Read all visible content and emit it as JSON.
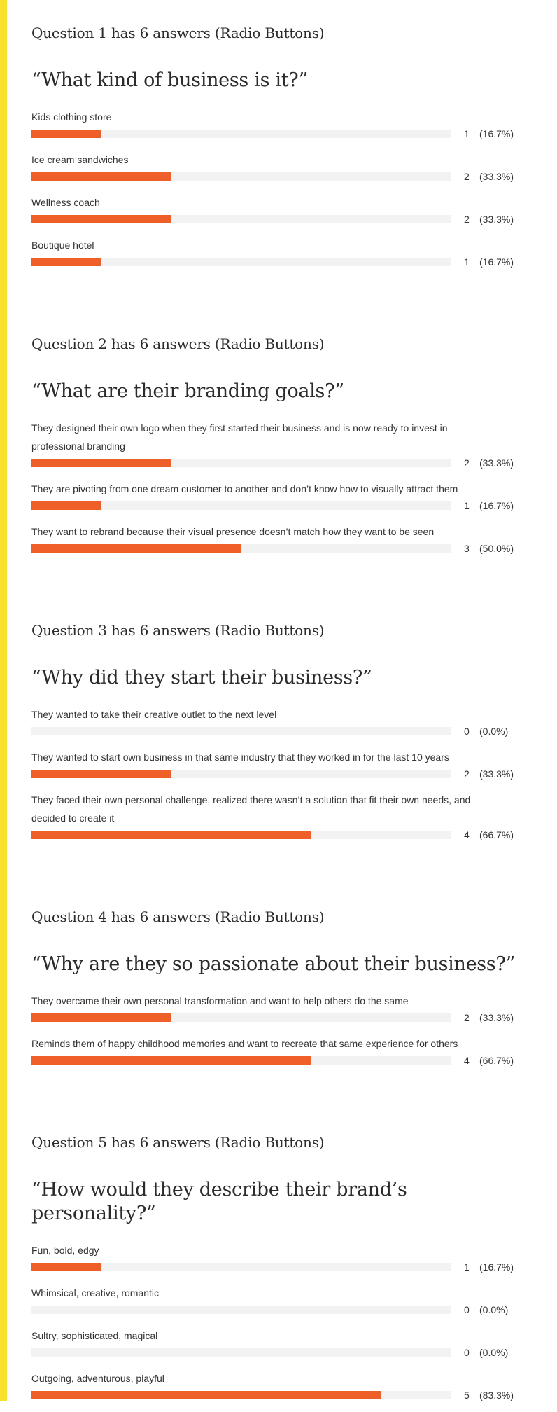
{
  "questions": [
    {
      "heading": "Question 1 has 6 answers (Radio Buttons)",
      "text": "“What kind of business is it?”",
      "answers": [
        {
          "label": "Kids clothing store",
          "count": "1",
          "percent": "(16.7%)",
          "fraction": 0.167
        },
        {
          "label": "Ice cream sandwiches",
          "count": "2",
          "percent": "(33.3%)",
          "fraction": 0.333
        },
        {
          "label": "Wellness coach",
          "count": "2",
          "percent": "(33.3%)",
          "fraction": 0.333
        },
        {
          "label": "Boutique hotel",
          "count": "1",
          "percent": "(16.7%)",
          "fraction": 0.167
        }
      ]
    },
    {
      "heading": "Question 2 has 6 answers (Radio Buttons)",
      "text": "“What are their branding goals?”",
      "answers": [
        {
          "label": "They designed their own logo when they first started their business and is now ready to invest in professional branding",
          "count": "2",
          "percent": "(33.3%)",
          "fraction": 0.333
        },
        {
          "label": "They are pivoting from one dream customer to another and don’t know how to visually attract them",
          "count": "1",
          "percent": "(16.7%)",
          "fraction": 0.167
        },
        {
          "label": "They want to rebrand because their visual presence doesn’t match how they want to be seen",
          "count": "3",
          "percent": "(50.0%)",
          "fraction": 0.5
        }
      ]
    },
    {
      "heading": "Question 3 has 6 answers (Radio Buttons)",
      "text": "“Why did they start their business?”",
      "answers": [
        {
          "label": "They wanted to take their creative outlet to the next level",
          "count": "0",
          "percent": "(0.0%)",
          "fraction": 0.0
        },
        {
          "label": "They wanted to start own business in that same industry that they worked in for the last 10 years",
          "count": "2",
          "percent": "(33.3%)",
          "fraction": 0.333
        },
        {
          "label": "They faced their own personal challenge, realized there wasn’t a solution that fit their own needs, and decided to create it",
          "count": "4",
          "percent": "(66.7%)",
          "fraction": 0.667
        }
      ]
    },
    {
      "heading": "Question 4 has 6 answers (Radio Buttons)",
      "text": "“Why are they so passionate about their business?”",
      "answers": [
        {
          "label": "They overcame their own personal transformation and want to help others do the same",
          "count": "2",
          "percent": "(33.3%)",
          "fraction": 0.333
        },
        {
          "label": "Reminds them of happy childhood memories and want to recreate that same experience for others",
          "count": "4",
          "percent": "(66.7%)",
          "fraction": 0.667
        }
      ]
    },
    {
      "heading": "Question 5 has 6 answers (Radio Buttons)",
      "text": "“How would they describe their brand’s personality?”",
      "answers": [
        {
          "label": "Fun, bold, edgy",
          "count": "1",
          "percent": "(16.7%)",
          "fraction": 0.167
        },
        {
          "label": "Whimsical, creative, romantic",
          "count": "0",
          "percent": "(0.0%)",
          "fraction": 0.0
        },
        {
          "label": "Sultry, sophisticated, magical",
          "count": "0",
          "percent": "(0.0%)",
          "fraction": 0.0
        },
        {
          "label": "Outgoing, adventurous, playful",
          "count": "5",
          "percent": "(83.3%)",
          "fraction": 0.833
        }
      ]
    }
  ],
  "colors": {
    "accent": "#f7e12a",
    "bar_fill": "#ee5f2a",
    "bar_track": "#f2f2f2"
  }
}
